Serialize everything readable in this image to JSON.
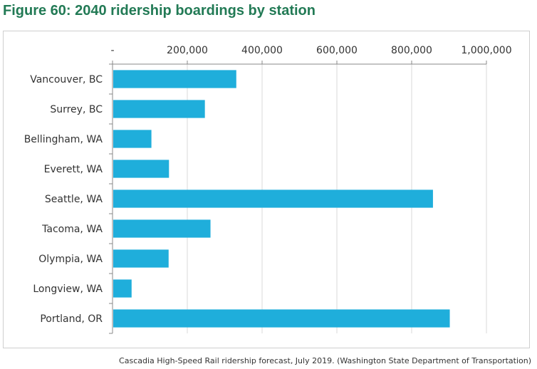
{
  "title": "Figure 60: 2040 ridership boardings by station",
  "caption": "Cascadia High-Speed Rail ridership forecast, July 2019. (Washington State Department of Transportation)",
  "chart_data": {
    "type": "bar",
    "orientation": "horizontal",
    "title": "Figure 60: 2040 ridership boardings by station",
    "categories": [
      "Vancouver, BC",
      "Surrey, BC",
      "Bellingham, WA",
      "Everett, WA",
      "Seattle, WA",
      "Tacoma, WA",
      "Olympia, WA",
      "Longview, WA",
      "Portland, OR"
    ],
    "values": [
      331000,
      247000,
      104000,
      151000,
      857000,
      262000,
      150000,
      51000,
      902000
    ],
    "xlim": [
      0,
      1000000
    ],
    "xticks": [
      0,
      200000,
      400000,
      600000,
      800000,
      1000000
    ],
    "xtick_labels": [
      "-",
      "200,000",
      "400,000",
      "600,000",
      "800,000",
      "1,000,000"
    ],
    "x_axis_position": "top",
    "grid": true,
    "bar_color": "#1faedb",
    "xlabel": "",
    "ylabel": ""
  }
}
